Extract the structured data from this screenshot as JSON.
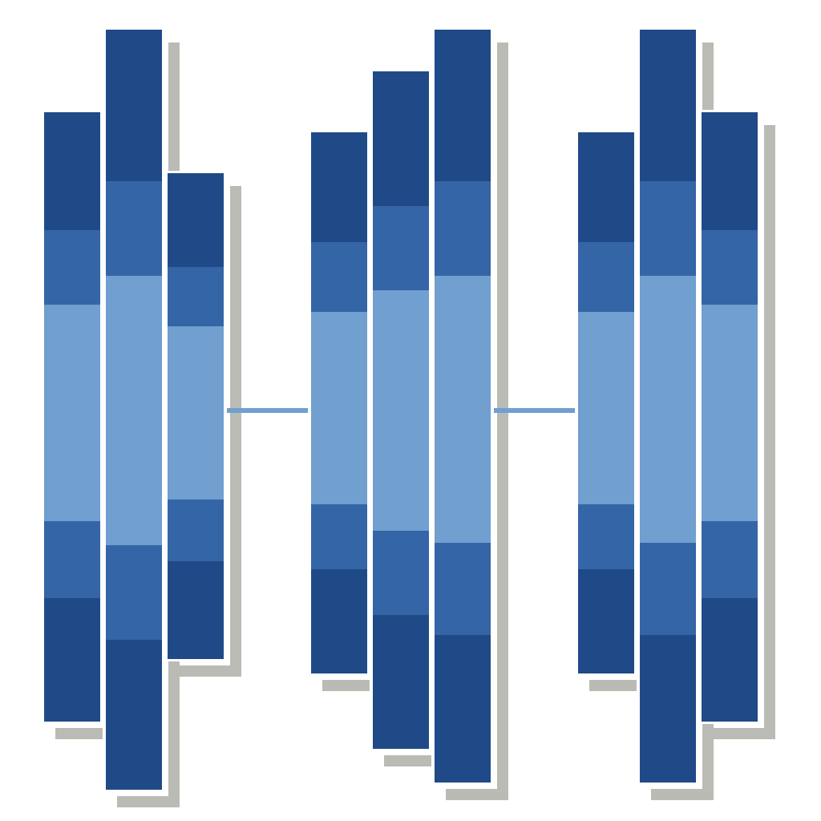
{
  "palette": {
    "background": "#ffffff",
    "dark_blue": "#1f4a87",
    "medium_blue": "#3465a6",
    "light_blue": "#709fd0",
    "shadow_gray": "#bbbbb5",
    "gap_white": "#ffffff"
  },
  "image": {
    "kind": "decorative graphic",
    "icon": "abstract-blue-bar-columns-graphic",
    "groups": 3,
    "bars_per_group": 3,
    "bar_bands": [
      "dark_blue",
      "medium_blue",
      "light_blue",
      "medium_blue",
      "dark_blue"
    ]
  }
}
